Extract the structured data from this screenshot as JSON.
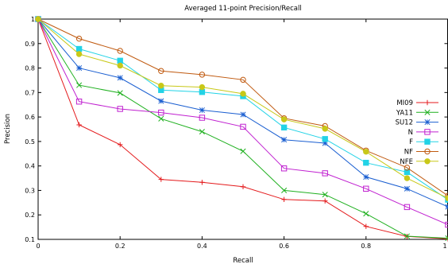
{
  "chart_data": {
    "type": "line",
    "title": "Averaged 11-point Precision/Recall",
    "xlabel": "Recall",
    "ylabel": "Precision",
    "xlim": [
      0,
      1
    ],
    "ylim": [
      0.1,
      1
    ],
    "xticks": [
      "0",
      "0.2",
      "0.4",
      "0.6",
      "0.8",
      "1"
    ],
    "yticks": [
      "0.1",
      "0.2",
      "0.3",
      "0.4",
      "0.5",
      "0.6",
      "0.7",
      "0.8",
      "0.9",
      "1"
    ],
    "grid": false,
    "legend_position": "right",
    "x": [
      0,
      0.1,
      0.2,
      0.3,
      0.4,
      0.5,
      0.6,
      0.7,
      0.8,
      0.9,
      1.0
    ],
    "series": [
      {
        "name": "MI09",
        "color": "#e41a1c",
        "marker": "plus",
        "values": [
          1.0,
          0.568,
          0.487,
          0.345,
          0.333,
          0.315,
          0.263,
          0.257,
          0.153,
          0.112,
          0.102
        ]
      },
      {
        "name": "YA11",
        "color": "#1fb01f",
        "marker": "x",
        "values": [
          1.0,
          0.73,
          0.698,
          0.593,
          0.54,
          0.46,
          0.3,
          0.283,
          0.205,
          0.113,
          0.105
        ]
      },
      {
        "name": "SU12",
        "color": "#1b5fd1",
        "marker": "star",
        "values": [
          1.0,
          0.8,
          0.76,
          0.665,
          0.628,
          0.61,
          0.507,
          0.493,
          0.355,
          0.307,
          0.233
        ]
      },
      {
        "name": "N",
        "color": "#c020d0",
        "marker": "square",
        "values": [
          1.0,
          0.663,
          0.633,
          0.618,
          0.597,
          0.56,
          0.39,
          0.37,
          0.307,
          0.232,
          0.16
        ]
      },
      {
        "name": "F",
        "color": "#22d3e6",
        "marker": "filled-square",
        "values": [
          1.0,
          0.878,
          0.83,
          0.71,
          0.702,
          0.685,
          0.557,
          0.51,
          0.413,
          0.375,
          0.262
        ]
      },
      {
        "name": "NF",
        "color": "#c05a10",
        "marker": "circle",
        "values": [
          1.0,
          0.92,
          0.87,
          0.788,
          0.773,
          0.752,
          0.595,
          0.563,
          0.463,
          0.393,
          0.278
        ]
      },
      {
        "name": "NFE",
        "color": "#c8c818",
        "marker": "filled-circle",
        "values": [
          1.0,
          0.857,
          0.81,
          0.728,
          0.722,
          0.695,
          0.59,
          0.552,
          0.458,
          0.35,
          0.268
        ]
      }
    ]
  }
}
